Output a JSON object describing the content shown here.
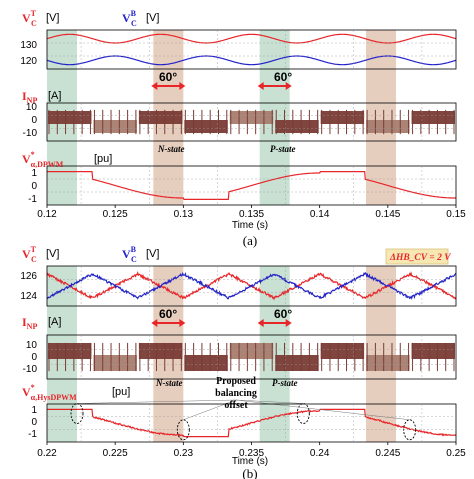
{
  "chart_data": [
    {
      "type": "line",
      "caption": "(a)",
      "xlabel": "Time (s)",
      "xlim": [
        0.12,
        0.15
      ],
      "xticks": [
        "0.12",
        "0.125",
        "0.13",
        "0.135",
        "0.14",
        "0.145",
        "0.15"
      ],
      "annotations": [
        "60°",
        "60°",
        "N-state",
        "P-state"
      ],
      "panels": [
        {
          "label": "V_C^T",
          "label2": "V_C^B",
          "unit": "[V]",
          "unit2": "[V]",
          "yticks": [
            "130",
            "120"
          ],
          "series": [
            {
              "name": "V_C^T",
              "color": "#e8262a",
              "mean": 130,
              "amp": 2
            },
            {
              "name": "V_C^B",
              "color": "#2323c8",
              "mean": 120,
              "amp": 2
            }
          ]
        },
        {
          "label": "I_NP",
          "unit": "[A]",
          "yticks": [
            "10",
            "0",
            "-10"
          ],
          "series": [
            {
              "name": "I_NP",
              "color": "#7a3b35",
              "amp": 10
            }
          ]
        },
        {
          "label": "V*_α,DPWM",
          "unit": "[pu]",
          "yticks": [
            "1",
            "0",
            "-1"
          ],
          "series": [
            {
              "name": "V*_α,DPWM",
              "color": "#e8262a"
            }
          ]
        }
      ]
    },
    {
      "type": "line",
      "caption": "(b)",
      "xlabel": "Time (s)",
      "xlim": [
        0.22,
        0.25
      ],
      "xticks": [
        "0.22",
        "0.225",
        "0.23",
        "0.235",
        "0.24",
        "0.245",
        "0.25"
      ],
      "annotations": [
        "60°",
        "60°",
        "N-state",
        "P-state",
        "Proposed",
        "balancing",
        "offset",
        "ΔHB_CV = 2 V"
      ],
      "panels": [
        {
          "label": "V_C^T",
          "label2": "V_C^B",
          "unit": "[V]",
          "unit2": "[V]",
          "yticks": [
            "126",
            "124"
          ],
          "series": [
            {
              "name": "V_C^T",
              "color": "#e8262a",
              "mean": 125,
              "amp": 1
            },
            {
              "name": "V_C^B",
              "color": "#2323c8",
              "mean": 125,
              "amp": 1
            }
          ]
        },
        {
          "label": "I_NP",
          "unit": "[A]",
          "yticks": [
            "10",
            "0",
            "-10"
          ],
          "series": [
            {
              "name": "I_NP",
              "color": "#7a3b35",
              "amp": 10
            }
          ]
        },
        {
          "label": "V*_α,HysDPWM",
          "unit": "[pu]",
          "yticks": [
            "1",
            "0",
            "-1"
          ],
          "series": [
            {
              "name": "V*_α,HysDPWM",
              "color": "#e8262a"
            }
          ]
        }
      ]
    }
  ],
  "colors": {
    "red": "#e8262a",
    "blue": "#2323c8",
    "brown": "#7a3b35",
    "green_band": "#bfdccb",
    "tan_band": "#e2c6b4"
  }
}
